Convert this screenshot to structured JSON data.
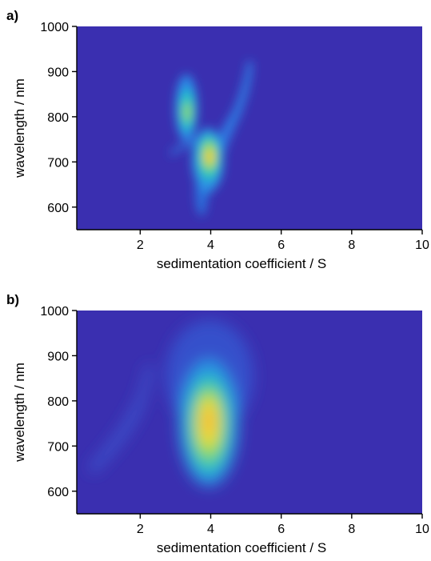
{
  "chart_data": [
    {
      "panel_label": "a)",
      "type": "heatmap",
      "xlabel": "sedimentation coefficient / S",
      "ylabel": "wavelength / nm",
      "xlim": [
        0.2,
        10
      ],
      "ylim": [
        550,
        1000
      ],
      "xticks": [
        2,
        4,
        6,
        8,
        10
      ],
      "yticks": [
        600,
        700,
        800,
        900,
        1000
      ],
      "colormap": [
        "#3a2fb0",
        "#2a7fe0",
        "#1fc0c0",
        "#7fdc60",
        "#f5e030"
      ],
      "peaks": [
        {
          "x": 4.0,
          "y": 710,
          "intensity": 1.0
        },
        {
          "x": 3.35,
          "y": 810,
          "intensity": 0.65
        },
        {
          "x": 4.6,
          "y": 830,
          "intensity": 0.3
        },
        {
          "x": 3.7,
          "y": 620,
          "intensity": 0.2
        }
      ]
    },
    {
      "panel_label": "b)",
      "type": "heatmap",
      "xlabel": "sedimentation coefficient / S",
      "ylabel": "wavelength / nm",
      "xlim": [
        0.2,
        10
      ],
      "ylim": [
        550,
        1000
      ],
      "xticks": [
        2,
        4,
        6,
        8,
        10
      ],
      "yticks": [
        600,
        700,
        800,
        900,
        1000
      ],
      "colormap": [
        "#3a2fb0",
        "#2a7fe0",
        "#1fc0c0",
        "#7fdc60",
        "#f5e030"
      ],
      "peaks": [
        {
          "x": 3.95,
          "y": 740,
          "intensity": 1.0
        },
        {
          "x": 1.0,
          "y": 700,
          "intensity": 0.18
        },
        {
          "x": 1.8,
          "y": 800,
          "intensity": 0.12
        }
      ]
    }
  ]
}
